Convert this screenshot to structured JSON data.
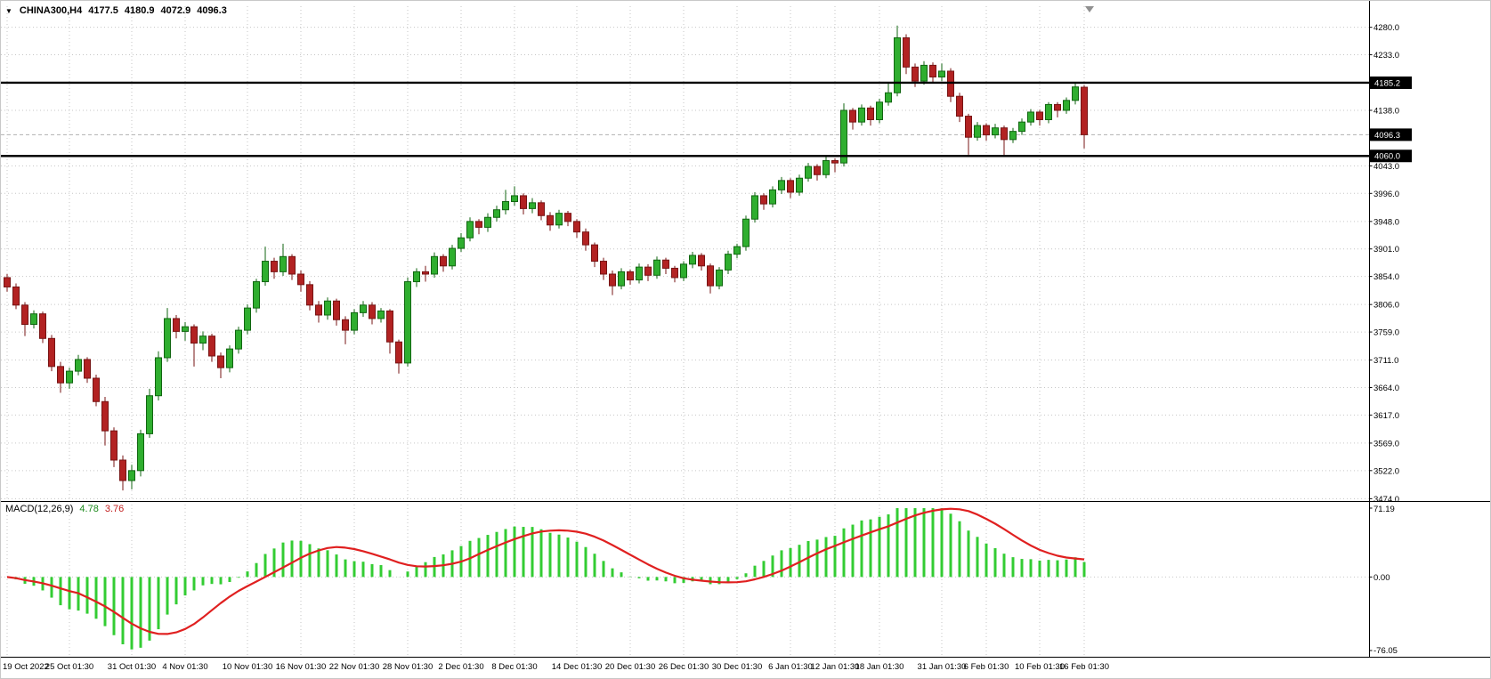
{
  "chart_data": {
    "type": "candlestick",
    "symbol": "CHINA300",
    "timeframe": "H4",
    "symbol_display": "CHINA300,H4",
    "ohlc_display": {
      "open": "4177.5",
      "high": "4180.9",
      "low": "4072.9",
      "close": "4096.3"
    },
    "current_price": 4096.3,
    "price_range": {
      "min": 3470,
      "max": 4316
    },
    "price_ticks": [
      4280,
      4233,
      4138,
      4043,
      3996,
      3948,
      3901,
      3854,
      3806,
      3759,
      3711,
      3664,
      3617,
      3569,
      3522,
      3474
    ],
    "price_badges": [
      {
        "label": "4185.2",
        "value": 4185.2
      },
      {
        "label": "4096.3",
        "value": 4096.3
      },
      {
        "label": "4060.0",
        "value": 4060.0
      }
    ],
    "hlines": [
      4185.2,
      4060.0
    ],
    "candles": [
      [
        3852,
        3858,
        3828,
        3836
      ],
      [
        3836,
        3842,
        3798,
        3805
      ],
      [
        3805,
        3810,
        3752,
        3772
      ],
      [
        3772,
        3796,
        3765,
        3790
      ],
      [
        3790,
        3794,
        3740,
        3748
      ],
      [
        3748,
        3754,
        3692,
        3700
      ],
      [
        3700,
        3708,
        3655,
        3672
      ],
      [
        3672,
        3698,
        3662,
        3692
      ],
      [
        3692,
        3720,
        3685,
        3712
      ],
      [
        3712,
        3716,
        3672,
        3680
      ],
      [
        3680,
        3686,
        3632,
        3640
      ],
      [
        3640,
        3648,
        3565,
        3590
      ],
      [
        3590,
        3596,
        3528,
        3540
      ],
      [
        3540,
        3548,
        3488,
        3505
      ],
      [
        3505,
        3532,
        3490,
        3522
      ],
      [
        3522,
        3592,
        3512,
        3585
      ],
      [
        3585,
        3662,
        3578,
        3650
      ],
      [
        3650,
        3726,
        3642,
        3715
      ],
      [
        3715,
        3800,
        3708,
        3782
      ],
      [
        3782,
        3788,
        3748,
        3760
      ],
      [
        3760,
        3776,
        3744,
        3768
      ],
      [
        3768,
        3772,
        3700,
        3740
      ],
      [
        3740,
        3760,
        3728,
        3752
      ],
      [
        3752,
        3756,
        3708,
        3718
      ],
      [
        3718,
        3724,
        3680,
        3698
      ],
      [
        3698,
        3736,
        3690,
        3730
      ],
      [
        3730,
        3768,
        3722,
        3762
      ],
      [
        3762,
        3806,
        3755,
        3800
      ],
      [
        3800,
        3850,
        3792,
        3845
      ],
      [
        3845,
        3905,
        3838,
        3880
      ],
      [
        3880,
        3886,
        3850,
        3862
      ],
      [
        3862,
        3910,
        3855,
        3888
      ],
      [
        3888,
        3892,
        3848,
        3858
      ],
      [
        3858,
        3864,
        3828,
        3840
      ],
      [
        3840,
        3846,
        3796,
        3805
      ],
      [
        3805,
        3812,
        3775,
        3788
      ],
      [
        3788,
        3818,
        3780,
        3812
      ],
      [
        3812,
        3816,
        3770,
        3780
      ],
      [
        3780,
        3786,
        3738,
        3762
      ],
      [
        3762,
        3798,
        3755,
        3792
      ],
      [
        3792,
        3812,
        3785,
        3805
      ],
      [
        3805,
        3810,
        3772,
        3782
      ],
      [
        3782,
        3800,
        3775,
        3795
      ],
      [
        3795,
        3798,
        3722,
        3742
      ],
      [
        3742,
        3746,
        3688,
        3706
      ],
      [
        3706,
        3852,
        3700,
        3845
      ],
      [
        3845,
        3868,
        3836,
        3862
      ],
      [
        3862,
        3872,
        3845,
        3858
      ],
      [
        3858,
        3895,
        3852,
        3888
      ],
      [
        3888,
        3892,
        3862,
        3872
      ],
      [
        3872,
        3908,
        3866,
        3902
      ],
      [
        3902,
        3928,
        3896,
        3920
      ],
      [
        3920,
        3955,
        3914,
        3948
      ],
      [
        3948,
        3952,
        3926,
        3938
      ],
      [
        3938,
        3962,
        3930,
        3955
      ],
      [
        3955,
        3975,
        3948,
        3968
      ],
      [
        3968,
        4002,
        3960,
        3982
      ],
      [
        3982,
        4008,
        3975,
        3992
      ],
      [
        3992,
        3996,
        3960,
        3970
      ],
      [
        3970,
        3988,
        3962,
        3980
      ],
      [
        3980,
        3984,
        3950,
        3958
      ],
      [
        3958,
        3964,
        3932,
        3942
      ],
      [
        3942,
        3968,
        3936,
        3962
      ],
      [
        3962,
        3966,
        3940,
        3948
      ],
      [
        3948,
        3952,
        3920,
        3930
      ],
      [
        3930,
        3936,
        3898,
        3908
      ],
      [
        3908,
        3912,
        3870,
        3880
      ],
      [
        3880,
        3886,
        3848,
        3858
      ],
      [
        3858,
        3864,
        3822,
        3838
      ],
      [
        3838,
        3868,
        3832,
        3862
      ],
      [
        3862,
        3866,
        3840,
        3848
      ],
      [
        3848,
        3876,
        3842,
        3870
      ],
      [
        3870,
        3875,
        3846,
        3856
      ],
      [
        3856,
        3888,
        3850,
        3882
      ],
      [
        3882,
        3886,
        3858,
        3868
      ],
      [
        3868,
        3872,
        3844,
        3852
      ],
      [
        3852,
        3880,
        3846,
        3875
      ],
      [
        3875,
        3896,
        3868,
        3890
      ],
      [
        3890,
        3894,
        3864,
        3872
      ],
      [
        3872,
        3876,
        3825,
        3838
      ],
      [
        3838,
        3870,
        3832,
        3865
      ],
      [
        3865,
        3898,
        3858,
        3892
      ],
      [
        3892,
        3910,
        3885,
        3905
      ],
      [
        3905,
        3958,
        3898,
        3952
      ],
      [
        3952,
        3998,
        3946,
        3992
      ],
      [
        3992,
        3996,
        3968,
        3978
      ],
      [
        3978,
        4008,
        3972,
        4002
      ],
      [
        4002,
        4024,
        3995,
        4018
      ],
      [
        4018,
        4022,
        3988,
        3998
      ],
      [
        3998,
        4028,
        3992,
        4022
      ],
      [
        4022,
        4048,
        4016,
        4042
      ],
      [
        4042,
        4046,
        4018,
        4028
      ],
      [
        4028,
        4058,
        4022,
        4052
      ],
      [
        4052,
        4056,
        4032,
        4048
      ],
      [
        4048,
        4150,
        4042,
        4138
      ],
      [
        4138,
        4142,
        4105,
        4118
      ],
      [
        4118,
        4148,
        4112,
        4142
      ],
      [
        4142,
        4146,
        4112,
        4122
      ],
      [
        4122,
        4158,
        4116,
        4152
      ],
      [
        4152,
        4185,
        4146,
        4168
      ],
      [
        4168,
        4283,
        4162,
        4262
      ],
      [
        4262,
        4268,
        4200,
        4212
      ],
      [
        4212,
        4218,
        4178,
        4188
      ],
      [
        4188,
        4222,
        4182,
        4215
      ],
      [
        4215,
        4220,
        4186,
        4195
      ],
      [
        4195,
        4218,
        4188,
        4205
      ],
      [
        4205,
        4210,
        4152,
        4162
      ],
      [
        4162,
        4168,
        4118,
        4128
      ],
      [
        4128,
        4132,
        4062,
        4092
      ],
      [
        4092,
        4118,
        4086,
        4112
      ],
      [
        4112,
        4116,
        4086,
        4096
      ],
      [
        4096,
        4115,
        4090,
        4108
      ],
      [
        4108,
        4112,
        4060,
        4088
      ],
      [
        4088,
        4108,
        4082,
        4102
      ],
      [
        4102,
        4124,
        4096,
        4118
      ],
      [
        4118,
        4140,
        4112,
        4135
      ],
      [
        4135,
        4139,
        4112,
        4122
      ],
      [
        4122,
        4152,
        4116,
        4148
      ],
      [
        4148,
        4152,
        4126,
        4138
      ],
      [
        4138,
        4160,
        4132,
        4155
      ],
      [
        4155,
        4186,
        4148,
        4178
      ],
      [
        4177.5,
        4180.9,
        4072.9,
        4096.3
      ]
    ],
    "time_labels": [
      {
        "label": "19 Oct 2022",
        "index": 0
      },
      {
        "label": "25 Oct 01:30",
        "index": 7
      },
      {
        "label": "31 Oct 01:30",
        "index": 14
      },
      {
        "label": "4 Nov 01:30",
        "index": 20
      },
      {
        "label": "10 Nov 01:30",
        "index": 27
      },
      {
        "label": "16 Nov 01:30",
        "index": 33
      },
      {
        "label": "22 Nov 01:30",
        "index": 39
      },
      {
        "label": "28 Nov 01:30",
        "index": 45
      },
      {
        "label": "2 Dec 01:30",
        "index": 51
      },
      {
        "label": "8 Dec 01:30",
        "index": 57
      },
      {
        "label": "14 Dec 01:30",
        "index": 64
      },
      {
        "label": "20 Dec 01:30",
        "index": 70
      },
      {
        "label": "26 Dec 01:30",
        "index": 76
      },
      {
        "label": "30 Dec 01:30",
        "index": 82
      },
      {
        "label": "6 Jan 01:30",
        "index": 88
      },
      {
        "label": "12 Jan 01:30",
        "index": 93
      },
      {
        "label": "18 Jan 01:30",
        "index": 98
      },
      {
        "label": "31 Jan 01:30",
        "index": 105
      },
      {
        "label": "6 Feb 01:30",
        "index": 110
      },
      {
        "label": "10 Feb 01:30",
        "index": 116
      },
      {
        "label": "16 Feb 01:30",
        "index": 121
      }
    ],
    "macd": {
      "label": "MACD(12,26,9)",
      "main_value": "4.78",
      "signal_value": "3.76",
      "axis_ticks": [
        "71.19",
        "0.00",
        "-76.05"
      ],
      "range": {
        "min": -76.05,
        "max": 71.19
      }
    },
    "colors": {
      "up": "#2fae2f",
      "up_border": "#116611",
      "down": "#b22222",
      "down_border": "#771414",
      "hist": "#33cc33",
      "signal": "#e02020",
      "grid": "#c6c6c6",
      "hline": "#000000",
      "current_line": "#b0b0b0",
      "badge_bg": "#000000",
      "badge_fg": "#ffffff"
    }
  }
}
